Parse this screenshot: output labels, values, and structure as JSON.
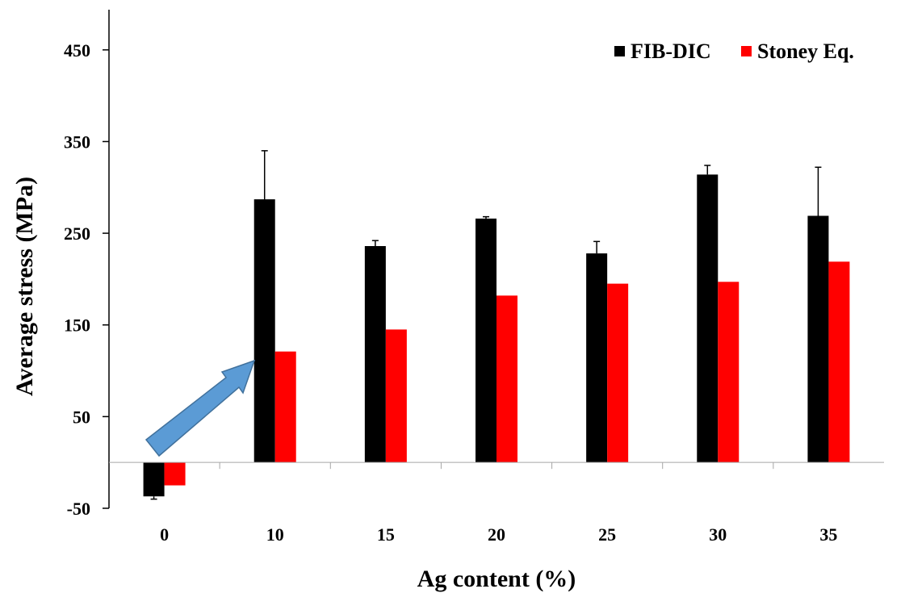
{
  "chart_data": {
    "type": "bar",
    "categories": [
      "0",
      "10",
      "15",
      "20",
      "25",
      "30",
      "35"
    ],
    "series": [
      {
        "name": "FIB-DIC",
        "color": "#000000",
        "values": [
          -37,
          287,
          236,
          266,
          228,
          314,
          269
        ],
        "error_plus": [
          3,
          53,
          6,
          2,
          13,
          10,
          53
        ]
      },
      {
        "name": "Stoney Eq.",
        "color": "#ff0000",
        "values": [
          -25,
          121,
          145,
          182,
          195,
          197,
          219
        ]
      }
    ],
    "xlabel": "Ag content (%)",
    "ylabel": "Average stress (MPa)",
    "ylim": [
      -50,
      500
    ],
    "yticks": [
      -50,
      50,
      150,
      250,
      350,
      450
    ],
    "legend_position": "top-right",
    "grid": false,
    "annotation": {
      "type": "arrow",
      "color": "#5b9bd5",
      "points_from": "0",
      "points_to": "10"
    }
  }
}
